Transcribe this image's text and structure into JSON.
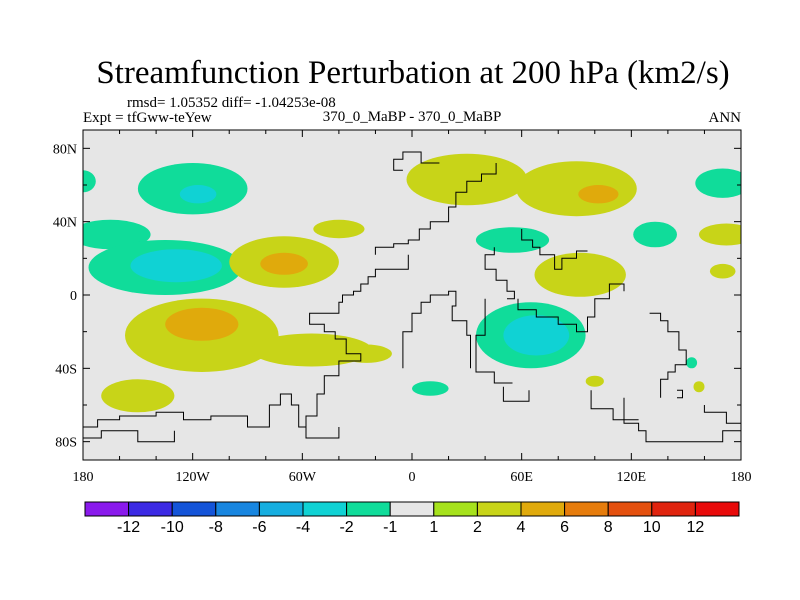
{
  "chart_data": {
    "type": "heatmap",
    "title": "Streamfunction Perturbation at 200 hPa (km2/s)",
    "stats_line": "rmsd= 1.05352 diff= -1.04253e-08",
    "experiment_label": "Expt = tfGww-teYew",
    "comparison_label": "370_0_MaBP - 370_0_MaBP",
    "season_label": "ANN",
    "x_axis": {
      "range": [
        -180,
        180
      ],
      "ticks": [
        -180,
        -120,
        -60,
        0,
        60,
        120,
        180
      ],
      "tick_labels": [
        "180",
        "120W",
        "60W",
        "0",
        "60E",
        "120E",
        "180"
      ]
    },
    "y_axis": {
      "range": [
        -90,
        90
      ],
      "ticks": [
        80,
        40,
        0,
        -40,
        -80
      ],
      "tick_labels": [
        "80N",
        "40N",
        "0",
        "40S",
        "80S"
      ]
    },
    "colorbar": {
      "levels": [
        "-12",
        "-10",
        "-8",
        "-6",
        "-4",
        "-2",
        "-1",
        "1",
        "2",
        "4",
        "6",
        "8",
        "10",
        "12"
      ],
      "colors": [
        "#8a1aec",
        "#3c2ae4",
        "#1454d8",
        "#1886e0",
        "#16aee0",
        "#10d2d4",
        "#10dc9a",
        "#e6e6e6",
        "#a6e21c",
        "#c8d418",
        "#e0aa0c",
        "#e67c0c",
        "#e4500e",
        "#e0240e",
        "#e80a0a"
      ]
    },
    "fields": [
      {
        "name": "ne-pacific-green",
        "lon": -120,
        "lat": 58,
        "rlon": 30,
        "rlat": 14,
        "value": -2
      },
      {
        "name": "ne-pacific-core",
        "lon": -117,
        "lat": 55,
        "rlon": 10,
        "rlat": 5,
        "value": -4
      },
      {
        "name": "n-pacific-east-edge",
        "lon": -180,
        "lat": 62,
        "rlon": 7,
        "rlat": 6,
        "value": -2
      },
      {
        "name": "n-pacific-west-lobe",
        "lon": -165,
        "lat": 33,
        "rlon": 22,
        "rlat": 8,
        "value": -2
      },
      {
        "name": "n-pacific-tropical-green",
        "lon": -135,
        "lat": 15,
        "rlon": 42,
        "rlat": 15,
        "value": -2
      },
      {
        "name": "n-pacific-tropical-core",
        "lon": -129,
        "lat": 16,
        "rlon": 25,
        "rlat": 9,
        "value": -4
      },
      {
        "name": "atlantic-lime",
        "lon": -70,
        "lat": 18,
        "rlon": 30,
        "rlat": 14,
        "value": 2
      },
      {
        "name": "atlantic-yellow",
        "lon": -70,
        "lat": 17,
        "rlon": 13,
        "rlat": 6,
        "value": 4
      },
      {
        "name": "n-atlantic-lime",
        "lon": -40,
        "lat": 36,
        "rlon": 14,
        "rlat": 5,
        "value": 2
      },
      {
        "name": "eurasia-lime-west",
        "lon": 30,
        "lat": 63,
        "rlon": 33,
        "rlat": 14,
        "value": 2
      },
      {
        "name": "eurasia-lime-east",
        "lon": 90,
        "lat": 58,
        "rlon": 33,
        "rlat": 15,
        "value": 2
      },
      {
        "name": "eurasia-yellow",
        "lon": 102,
        "lat": 55,
        "rlon": 11,
        "rlat": 5,
        "value": 4
      },
      {
        "name": "central-asia-green",
        "lon": 55,
        "lat": 30,
        "rlon": 20,
        "rlat": 7,
        "value": -2
      },
      {
        "name": "india-lime",
        "lon": 92,
        "lat": 11,
        "rlon": 25,
        "rlat": 12,
        "value": 2
      },
      {
        "name": "e-asia-green",
        "lon": 133,
        "lat": 33,
        "rlon": 12,
        "rlat": 7,
        "value": -2
      },
      {
        "name": "n-pacific-green-east",
        "lon": 170,
        "lat": 61,
        "rlon": 15,
        "rlat": 8,
        "value": -2
      },
      {
        "name": "w-pacific-lime",
        "lon": 172,
        "lat": 33,
        "rlon": 15,
        "rlat": 6,
        "value": 2
      },
      {
        "name": "w-pacific-lime-small",
        "lon": 170,
        "lat": 13,
        "rlon": 7,
        "rlat": 4,
        "value": 2
      },
      {
        "name": "s-pacific-lime",
        "lon": -115,
        "lat": -22,
        "rlon": 42,
        "rlat": 20,
        "value": 2
      },
      {
        "name": "s-pacific-yellow",
        "lon": -115,
        "lat": -16,
        "rlon": 20,
        "rlat": 9,
        "value": 4
      },
      {
        "name": "s-atlantic-lime",
        "lon": -55,
        "lat": -30,
        "rlon": 33,
        "rlat": 9,
        "value": 2
      },
      {
        "name": "s-atlantic-tail",
        "lon": -25,
        "lat": -32,
        "rlon": 14,
        "rlat": 5,
        "value": 2
      },
      {
        "name": "indian-ocean-green",
        "lon": 65,
        "lat": -22,
        "rlon": 30,
        "rlat": 18,
        "value": -2
      },
      {
        "name": "indian-ocean-core",
        "lon": 68,
        "lat": -22,
        "rlon": 18,
        "rlat": 11,
        "value": -4
      },
      {
        "name": "s-indian-green-small",
        "lon": 10,
        "lat": -51,
        "rlon": 10,
        "rlat": 4,
        "value": -2
      },
      {
        "name": "s-indian-lime-small",
        "lon": 100,
        "lat": -47,
        "rlon": 5,
        "rlat": 3,
        "value": 2
      },
      {
        "name": "australia-green-small",
        "lon": 153,
        "lat": -37,
        "rlon": 3,
        "rlat": 3,
        "value": -2
      },
      {
        "name": "australia-lime-small",
        "lon": 157,
        "lat": -50,
        "rlon": 3,
        "rlat": 3,
        "value": 2
      },
      {
        "name": "southern-ocean-lime",
        "lon": -150,
        "lat": -55,
        "rlon": 20,
        "rlat": 9,
        "value": 2
      }
    ],
    "coastlines": [
      [
        [
          -180,
          -72
        ],
        [
          -172,
          -72
        ],
        [
          -172,
          -68
        ],
        [
          -160,
          -68
        ],
        [
          -160,
          -66
        ],
        [
          -140,
          -66
        ],
        [
          -140,
          -64
        ],
        [
          -125,
          -64
        ],
        [
          -125,
          -68
        ],
        [
          -110,
          -68
        ],
        [
          -110,
          -66
        ],
        [
          -90,
          -66
        ],
        [
          -90,
          -72
        ],
        [
          -78,
          -72
        ],
        [
          -78,
          -60
        ],
        [
          -72,
          -60
        ],
        [
          -72,
          -54
        ],
        [
          -66,
          -54
        ],
        [
          -66,
          -60
        ],
        [
          -62,
          -60
        ],
        [
          -62,
          -72
        ],
        [
          -58,
          -72
        ],
        [
          -58,
          -78
        ],
        [
          -40,
          -78
        ],
        [
          -40,
          -72
        ]
      ],
      [
        [
          -180,
          -78
        ],
        [
          -170,
          -78
        ],
        [
          -170,
          -74
        ],
        [
          -150,
          -74
        ],
        [
          -150,
          -80
        ],
        [
          -130,
          -80
        ],
        [
          -130,
          -74
        ]
      ],
      [
        [
          -58,
          -75
        ],
        [
          -58,
          -66
        ],
        [
          -52,
          -66
        ],
        [
          -52,
          -54
        ],
        [
          -48,
          -54
        ],
        [
          -48,
          -44
        ],
        [
          -40,
          -44
        ],
        [
          -40,
          -36
        ],
        [
          -28,
          -36
        ],
        [
          -28,
          -32
        ],
        [
          -36,
          -32
        ],
        [
          -36,
          -24
        ],
        [
          -42,
          -24
        ],
        [
          -42,
          -20
        ],
        [
          -48,
          -20
        ],
        [
          -48,
          -16
        ],
        [
          -56,
          -16
        ],
        [
          -56,
          -10
        ],
        [
          -40,
          -10
        ],
        [
          -40,
          -4
        ],
        [
          -38,
          -4
        ],
        [
          -38,
          0
        ],
        [
          -32,
          0
        ],
        [
          -32,
          2
        ],
        [
          -28,
          2
        ],
        [
          -28,
          6
        ],
        [
          -24,
          6
        ],
        [
          -24,
          10
        ],
        [
          -20,
          10
        ],
        [
          -20,
          14
        ],
        [
          -2,
          14
        ],
        [
          -2,
          22
        ]
      ],
      [
        [
          -20,
          22
        ],
        [
          -20,
          26
        ],
        [
          -10,
          26
        ],
        [
          -10,
          28
        ],
        [
          -2,
          28
        ],
        [
          -2,
          30
        ],
        [
          4,
          30
        ],
        [
          4,
          36
        ],
        [
          10,
          36
        ],
        [
          10,
          40
        ],
        [
          20,
          40
        ],
        [
          20,
          48
        ],
        [
          24,
          48
        ],
        [
          24,
          56
        ],
        [
          30,
          56
        ],
        [
          30,
          62
        ],
        [
          38,
          62
        ],
        [
          38,
          66
        ],
        [
          46,
          66
        ],
        [
          46,
          72
        ]
      ],
      [
        [
          -5,
          68
        ],
        [
          -10,
          68
        ],
        [
          -10,
          74
        ],
        [
          -5,
          74
        ],
        [
          -5,
          78
        ],
        [
          5,
          78
        ],
        [
          5,
          72
        ],
        [
          15,
          72
        ]
      ],
      [
        [
          -5,
          -40
        ],
        [
          -5,
          -20
        ],
        [
          0,
          -20
        ],
        [
          0,
          -10
        ],
        [
          5,
          -10
        ],
        [
          5,
          -4
        ],
        [
          10,
          -4
        ],
        [
          10,
          0
        ],
        [
          20,
          0
        ],
        [
          20,
          2
        ],
        [
          24,
          2
        ],
        [
          24,
          -6
        ],
        [
          22,
          -6
        ],
        [
          22,
          -14
        ],
        [
          30,
          -14
        ],
        [
          30,
          -22
        ],
        [
          32,
          -22
        ],
        [
          32,
          -40
        ]
      ],
      [
        [
          45,
          26
        ],
        [
          45,
          22
        ],
        [
          40,
          22
        ],
        [
          40,
          14
        ],
        [
          46,
          14
        ],
        [
          46,
          8
        ],
        [
          52,
          8
        ],
        [
          52,
          2
        ],
        [
          56,
          2
        ],
        [
          56,
          -2
        ],
        [
          52,
          -2
        ]
      ],
      [
        [
          40,
          -2
        ],
        [
          40,
          -22
        ],
        [
          35,
          -22
        ],
        [
          35,
          -38
        ],
        [
          35,
          -42
        ],
        [
          45,
          -42
        ],
        [
          45,
          -48
        ],
        [
          55,
          -48
        ]
      ],
      [
        [
          58,
          -2
        ],
        [
          58,
          -8
        ],
        [
          68,
          -8
        ],
        [
          68,
          -12
        ],
        [
          80,
          -12
        ],
        [
          80,
          -16
        ],
        [
          90,
          -16
        ],
        [
          90,
          -20
        ],
        [
          96,
          -20
        ],
        [
          96,
          -12
        ],
        [
          100,
          -12
        ],
        [
          100,
          -2
        ],
        [
          108,
          -2
        ],
        [
          108,
          6
        ],
        [
          116,
          6
        ],
        [
          116,
          2
        ]
      ],
      [
        [
          60,
          36
        ],
        [
          60,
          30
        ],
        [
          66,
          30
        ],
        [
          66,
          26
        ],
        [
          70,
          26
        ],
        [
          70,
          22
        ],
        [
          78,
          22
        ],
        [
          78,
          14
        ],
        [
          82,
          14
        ],
        [
          82,
          20
        ],
        [
          90,
          20
        ],
        [
          90,
          24
        ],
        [
          96,
          24
        ]
      ],
      [
        [
          50,
          -50
        ],
        [
          50,
          -58
        ],
        [
          64,
          -58
        ],
        [
          64,
          -52
        ]
      ],
      [
        [
          98,
          -52
        ],
        [
          98,
          -62
        ],
        [
          110,
          -62
        ],
        [
          110,
          -68
        ],
        [
          124,
          -68
        ]
      ],
      [
        [
          130,
          -10
        ],
        [
          136,
          -10
        ],
        [
          136,
          -14
        ],
        [
          140,
          -14
        ],
        [
          140,
          -20
        ],
        [
          146,
          -20
        ],
        [
          146,
          -30
        ],
        [
          150,
          -30
        ],
        [
          150,
          -38
        ],
        [
          144,
          -38
        ],
        [
          144,
          -42
        ],
        [
          140,
          -42
        ],
        [
          140,
          -46
        ],
        [
          136,
          -46
        ],
        [
          136,
          -56
        ]
      ],
      [
        [
          116,
          -56
        ],
        [
          116,
          -70
        ],
        [
          124,
          -70
        ],
        [
          124,
          -74
        ],
        [
          128,
          -74
        ],
        [
          128,
          -80
        ],
        [
          170,
          -80
        ],
        [
          170,
          -74
        ],
        [
          180,
          -74
        ]
      ],
      [
        [
          160,
          -60
        ],
        [
          160,
          -64
        ],
        [
          172,
          -64
        ],
        [
          172,
          -70
        ],
        [
          180,
          -70
        ]
      ],
      [
        [
          145,
          -52
        ],
        [
          148,
          -52
        ],
        [
          148,
          -56
        ],
        [
          145,
          -56
        ]
      ]
    ]
  }
}
